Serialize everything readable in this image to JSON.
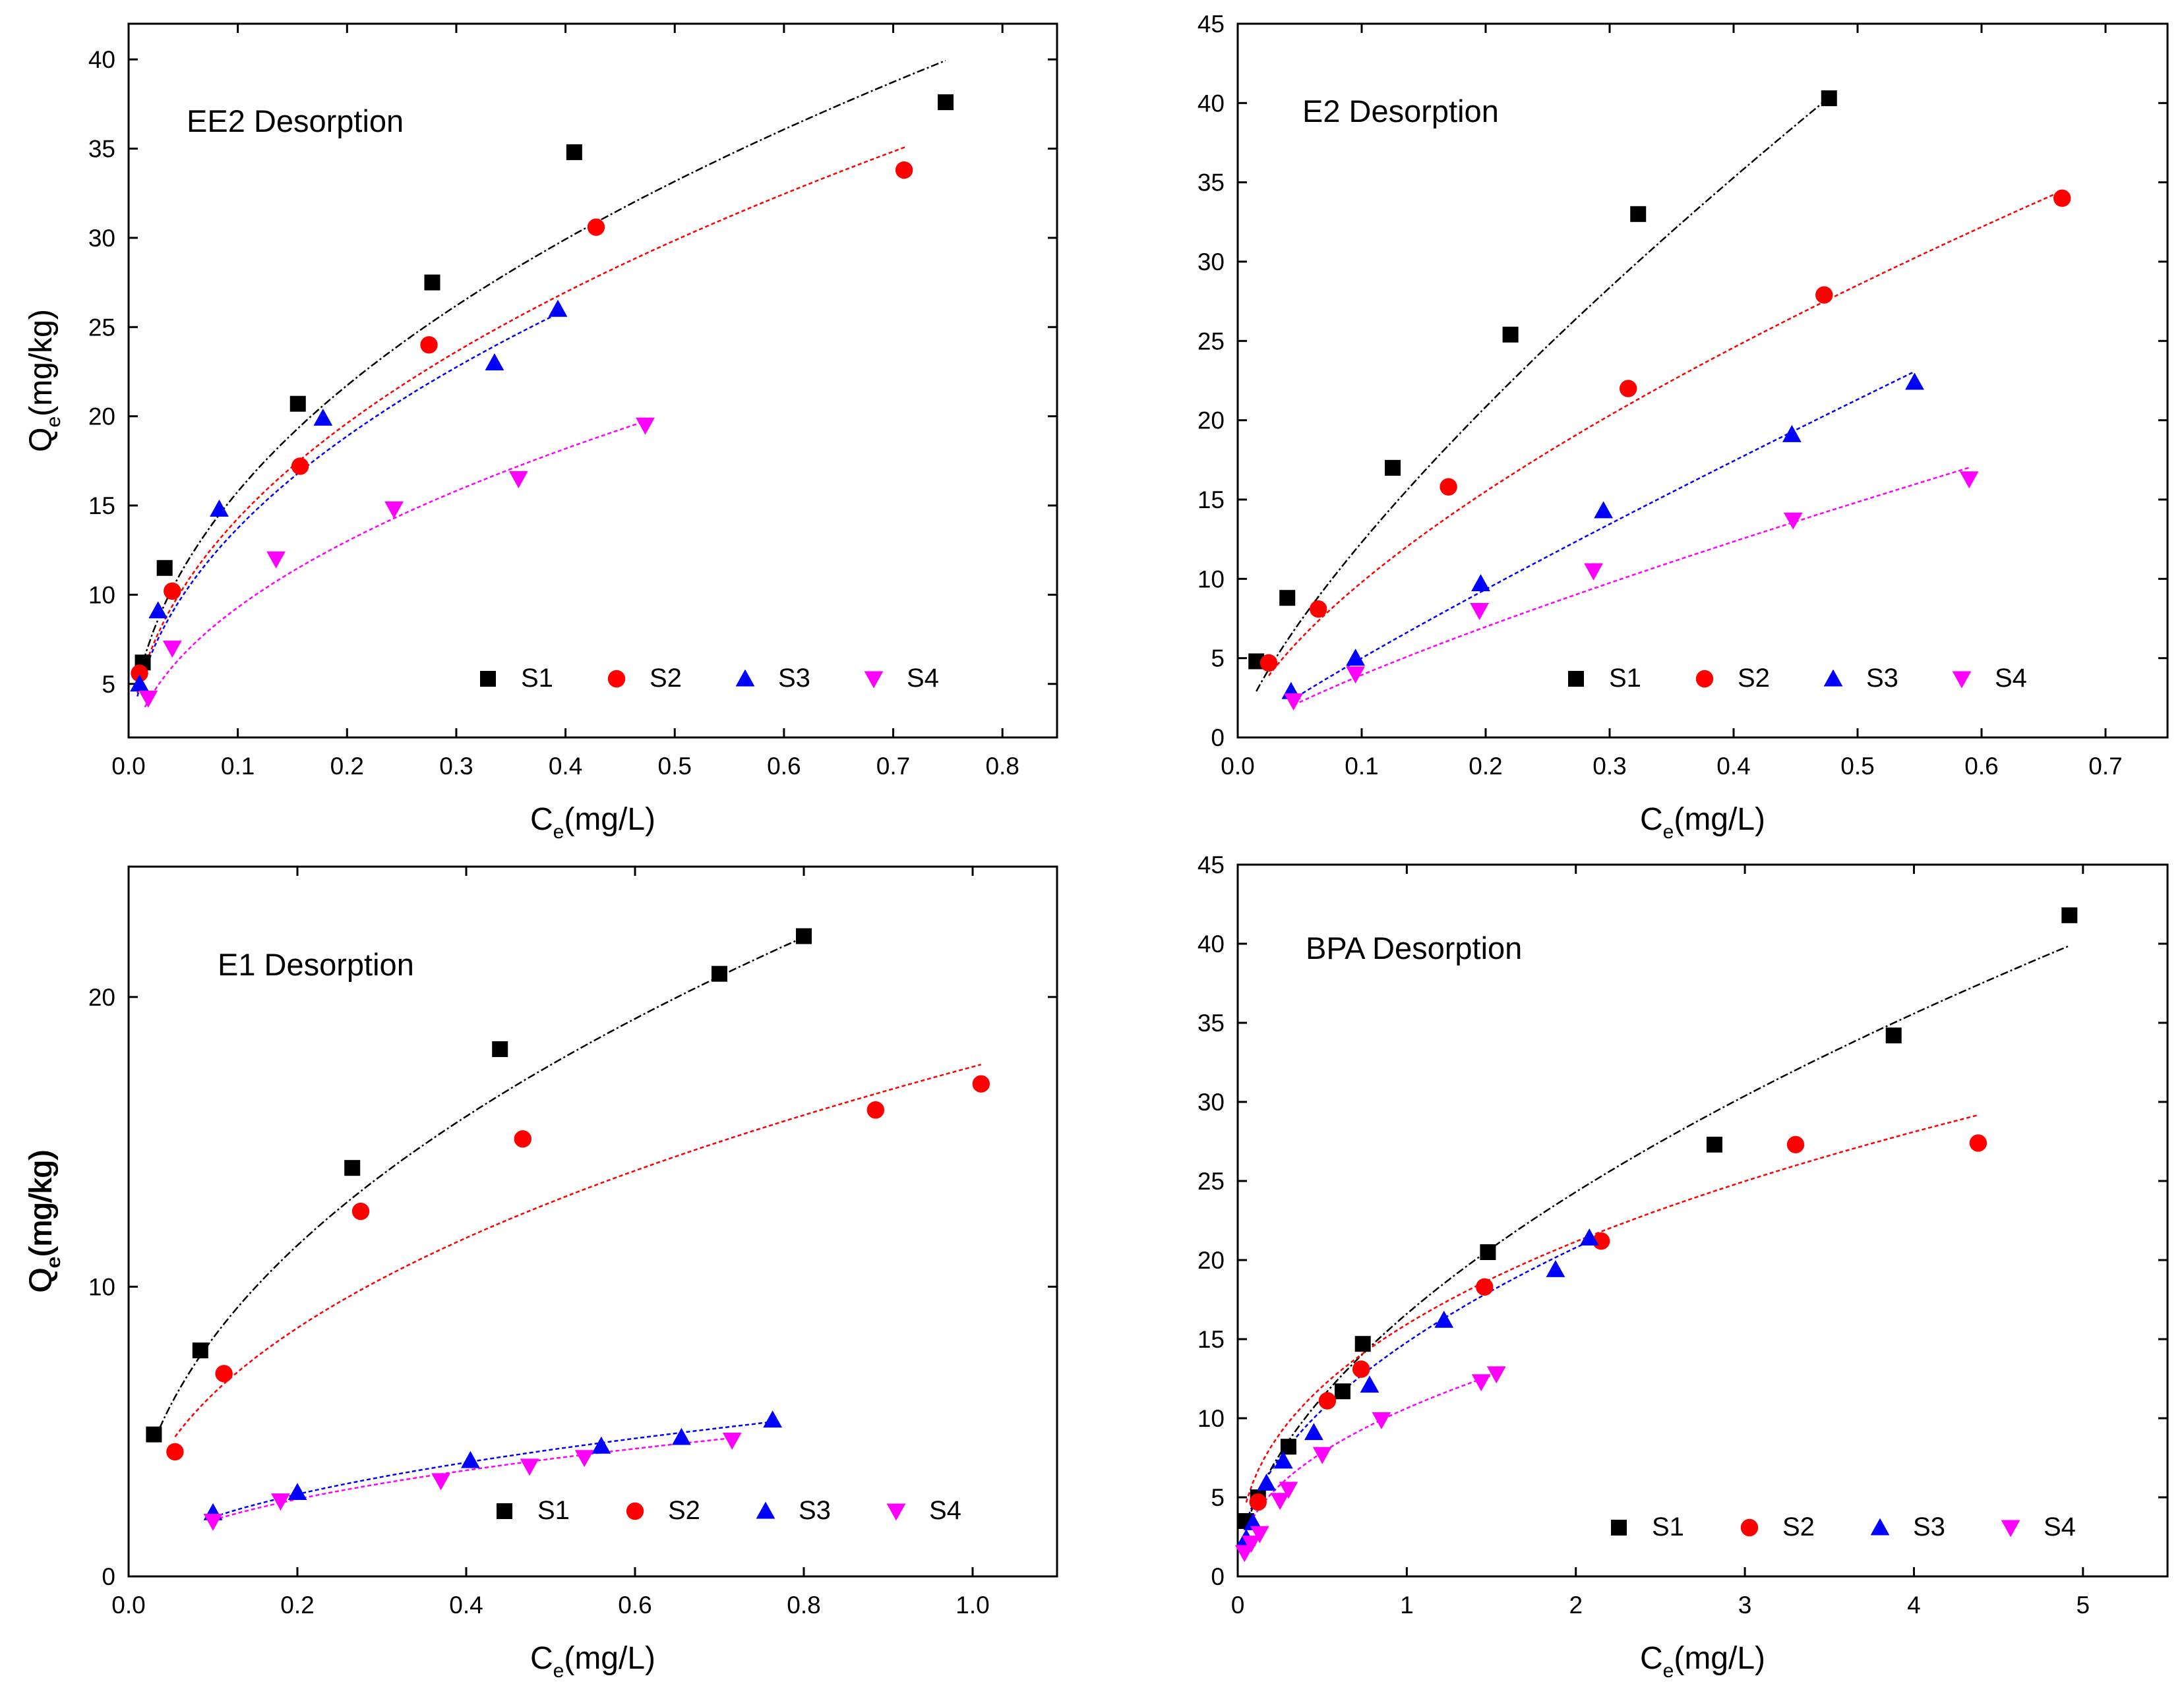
{
  "chart_data": [
    {
      "type": "scatter",
      "title": "EE2 Desorption",
      "xlabel": "C",
      "xlabel_sub": "e",
      "xlabel_unit": "(mg/L)",
      "ylabel": "Q",
      "ylabel_sub": "e",
      "ylabel_unit": "(mg/kg)",
      "xlim": [
        0,
        0.85
      ],
      "ylim": [
        2,
        42
      ],
      "xticks": [
        0.0,
        0.1,
        0.2,
        0.3,
        0.4,
        0.5,
        0.6,
        0.7,
        0.8
      ],
      "xtick_labels": [
        "0.0",
        "0.1",
        "0.2",
        "0.3",
        "0.4",
        "0.5",
        "0.6",
        "0.7",
        "0.8"
      ],
      "yticks": [
        5,
        10,
        15,
        20,
        25,
        30,
        35,
        40
      ],
      "ytick_labels": [
        "5",
        "10",
        "15",
        "20",
        "25",
        "30",
        "35",
        "40"
      ],
      "legend": "bottom",
      "series": [
        {
          "name": "S1",
          "color": "#000000",
          "marker": "square",
          "x": [
            0.013,
            0.033,
            0.155,
            0.278,
            0.408,
            0.748
          ],
          "y": [
            6.2,
            11.5,
            20.7,
            27.5,
            34.8,
            37.6
          ],
          "fit": {
            "K": 45.66,
            "n": 0.4613,
            "x0": 0.01,
            "x1": 0.748
          }
        },
        {
          "name": "S2",
          "color": "#ff0000",
          "marker": "circle",
          "x": [
            0.01,
            0.04,
            0.157,
            0.275,
            0.428,
            0.71
          ],
          "y": [
            5.6,
            10.2,
            17.2,
            24.0,
            30.6,
            33.8
          ],
          "fit": {
            "K": 41.03,
            "n": 0.4587,
            "x0": 0.008,
            "x1": 0.712
          }
        },
        {
          "name": "S3",
          "color": "#0000ff",
          "marker": "triangle-up",
          "x": [
            0.01,
            0.027,
            0.083,
            0.178,
            0.335,
            0.393
          ],
          "y": [
            5.0,
            9.1,
            14.8,
            19.9,
            23.0,
            26.0
          ],
          "fit": {
            "K": 39.56,
            "n": 0.4595,
            "x0": 0.008,
            "x1": 0.393
          }
        },
        {
          "name": "S4",
          "color": "#ff00ff",
          "marker": "triangle-down",
          "x": [
            0.018,
            0.04,
            0.135,
            0.243,
            0.357,
            0.473
          ],
          "y": [
            4.2,
            7.0,
            12.0,
            14.8,
            16.5,
            19.5
          ],
          "fit": {
            "K": 28.35,
            "n": 0.4846,
            "x0": 0.015,
            "x1": 0.473
          }
        }
      ]
    },
    {
      "type": "scatter",
      "title": "E2 Desorption",
      "xlabel": "C",
      "xlabel_sub": "e",
      "xlabel_unit": "(mg/L)",
      "ylabel": "Q",
      "ylabel_sub": "e",
      "ylabel_unit": "(mg/kg)",
      "xlim": [
        0,
        0.75
      ],
      "ylim": [
        0,
        45
      ],
      "xticks": [
        0.0,
        0.1,
        0.2,
        0.3,
        0.4,
        0.5,
        0.6,
        0.7
      ],
      "xtick_labels": [
        "0.0",
        "0.1",
        "0.2",
        "0.3",
        "0.4",
        "0.5",
        "0.6",
        "0.7"
      ],
      "yticks": [
        0,
        5,
        10,
        15,
        20,
        25,
        30,
        35,
        40,
        45
      ],
      "ytick_labels": [
        "0",
        "5",
        "10",
        "15",
        "20",
        "25",
        "30",
        "35",
        "40",
        "45"
      ],
      "legend": "bottom",
      "series": [
        {
          "name": "S1",
          "color": "#000000",
          "marker": "square",
          "x": [
            0.015,
            0.04,
            0.125,
            0.22,
            0.323,
            0.477
          ],
          "y": [
            4.8,
            8.8,
            17.0,
            25.4,
            33.0,
            40.3
          ],
          "fit": {
            "K": 70.84,
            "n": 0.7603,
            "x0": 0.015,
            "x1": 0.477
          }
        },
        {
          "name": "S2",
          "color": "#ff0000",
          "marker": "circle",
          "x": [
            0.025,
            0.065,
            0.17,
            0.315,
            0.473,
            0.665
          ],
          "y": [
            4.7,
            8.1,
            15.8,
            22.0,
            27.9,
            34.0
          ],
          "fit": {
            "K": 45.19,
            "n": 0.6645,
            "x0": 0.025,
            "x1": 0.665
          }
        },
        {
          "name": "S3",
          "color": "#0000ff",
          "marker": "triangle-up",
          "x": [
            0.043,
            0.095,
            0.196,
            0.295,
            0.447,
            0.546
          ],
          "y": [
            2.9,
            5.0,
            9.7,
            14.3,
            19.1,
            22.4
          ],
          "fit": {
            "K": 39.79,
            "n": 0.9008,
            "x0": 0.043,
            "x1": 0.546
          }
        },
        {
          "name": "S4",
          "color": "#ff00ff",
          "marker": "triangle-down",
          "x": [
            0.045,
            0.095,
            0.195,
            0.287,
            0.448,
            0.59
          ],
          "y": [
            2.3,
            4.0,
            8.0,
            10.5,
            13.7,
            16.3
          ],
          "fit": {
            "K": 26.28,
            "n": 0.8243,
            "x0": 0.045,
            "x1": 0.59
          }
        }
      ]
    },
    {
      "type": "scatter",
      "title": "E1 Desorption",
      "xlabel": "C",
      "xlabel_sub": "e",
      "xlabel_unit": "(mg/L)",
      "ylabel": "Q",
      "ylabel_sub": "e",
      "ylabel_unit": "(mg/kg)",
      "xlim": [
        0,
        1.1
      ],
      "ylim": [
        0,
        24.5
      ],
      "xticks": [
        0.0,
        0.2,
        0.4,
        0.6,
        0.8,
        1.0
      ],
      "xtick_labels": [
        "0.0",
        "0.2",
        "0.4",
        "0.6",
        "0.8",
        "1.0"
      ],
      "yticks": [
        0,
        10,
        20
      ],
      "ytick_labels": [
        "0",
        "10",
        "20"
      ],
      "legend": "bottom",
      "series": [
        {
          "name": "S1",
          "color": "#000000",
          "marker": "square",
          "x": [
            0.03,
            0.085,
            0.265,
            0.44,
            0.7,
            0.8
          ],
          "y": [
            4.9,
            7.8,
            14.1,
            18.2,
            20.8,
            22.1
          ],
          "fit": {
            "K": 24.53,
            "n": 0.4746,
            "x0": 0.03,
            "x1": 0.8
          }
        },
        {
          "name": "S2",
          "color": "#ff0000",
          "marker": "circle",
          "x": [
            0.055,
            0.113,
            0.275,
            0.467,
            0.885,
            1.01
          ],
          "y": [
            4.3,
            7.0,
            12.6,
            15.1,
            16.1,
            17.0
          ],
          "fit": {
            "K": 17.59,
            "n": 0.4463,
            "x0": 0.055,
            "x1": 1.01
          }
        },
        {
          "name": "S3",
          "color": "#0000ff",
          "marker": "triangle-up",
          "x": [
            0.1,
            0.2,
            0.405,
            0.56,
            0.655,
            0.763
          ],
          "y": [
            2.2,
            2.9,
            4.0,
            4.5,
            4.8,
            5.4
          ],
          "fit": {
            "K": 6.06,
            "n": 0.4719,
            "x0": 0.1,
            "x1": 0.763
          }
        },
        {
          "name": "S4",
          "color": "#ff00ff",
          "marker": "triangle-down",
          "x": [
            0.1,
            0.18,
            0.37,
            0.475,
            0.54,
            0.715
          ],
          "y": [
            1.9,
            2.6,
            3.3,
            3.8,
            4.1,
            4.7
          ],
          "fit": {
            "K": 5.57,
            "n": 0.4579,
            "x0": 0.1,
            "x1": 0.715
          }
        }
      ]
    },
    {
      "type": "scatter",
      "title": "BPA Desorption",
      "xlabel": "C",
      "xlabel_sub": "e",
      "xlabel_unit": "(mg/L)",
      "ylabel": "Q",
      "ylabel_sub": "e",
      "ylabel_unit": "(mg/kg)",
      "xlim": [
        0,
        5.5
      ],
      "ylim": [
        0,
        45
      ],
      "xticks": [
        0,
        1,
        2,
        3,
        4,
        5
      ],
      "xtick_labels": [
        "0",
        "1",
        "2",
        "3",
        "4",
        "5"
      ],
      "yticks": [
        0,
        5,
        10,
        15,
        20,
        25,
        30,
        35,
        40,
        45
      ],
      "ytick_labels": [
        "0",
        "5",
        "10",
        "15",
        "20",
        "25",
        "30",
        "35",
        "40",
        "45"
      ],
      "legend": "bottom",
      "series": [
        {
          "name": "S1",
          "color": "#000000",
          "marker": "square",
          "x": [
            0.05,
            0.12,
            0.3,
            0.62,
            0.74,
            1.48,
            2.82,
            3.88,
            4.92
          ],
          "y": [
            3.5,
            5.0,
            8.2,
            11.7,
            14.7,
            20.5,
            27.3,
            34.2,
            41.8
          ],
          "fit": {
            "K": 16.6,
            "n": 0.55,
            "x0": 0.05,
            "x1": 4.92
          }
        },
        {
          "name": "S2",
          "color": "#ff0000",
          "marker": "circle",
          "x": [
            0.12,
            0.53,
            0.73,
            1.46,
            2.15,
            3.3,
            4.38
          ],
          "y": [
            4.7,
            11.1,
            13.1,
            18.3,
            21.2,
            27.3,
            27.4
          ],
          "fit": {
            "K": 15.94,
            "n": 0.4091,
            "x0": 0.05,
            "x1": 4.38
          }
        },
        {
          "name": "S3",
          "color": "#0000ff",
          "marker": "triangle-up",
          "x": [
            0.05,
            0.09,
            0.17,
            0.27,
            0.45,
            0.78,
            1.22,
            1.88,
            2.08
          ],
          "y": [
            2.4,
            3.4,
            5.9,
            7.3,
            9.1,
            12.1,
            16.2,
            19.4,
            21.4
          ],
          "fit": {
            "K": 14.8,
            "n": 0.49,
            "x0": 0.04,
            "x1": 2.08
          }
        },
        {
          "name": "S4",
          "color": "#ff00ff",
          "marker": "triangle-down",
          "x": [
            0.04,
            0.08,
            0.13,
            0.25,
            0.3,
            0.5,
            0.85,
            1.44,
            1.53
          ],
          "y": [
            1.5,
            2.1,
            2.7,
            4.8,
            5.5,
            7.7,
            9.9,
            12.3,
            12.8
          ],
          "fit": {
            "K": 10.63,
            "n": 0.4395,
            "x0": 0.04,
            "x1": 1.53
          }
        }
      ]
    }
  ]
}
